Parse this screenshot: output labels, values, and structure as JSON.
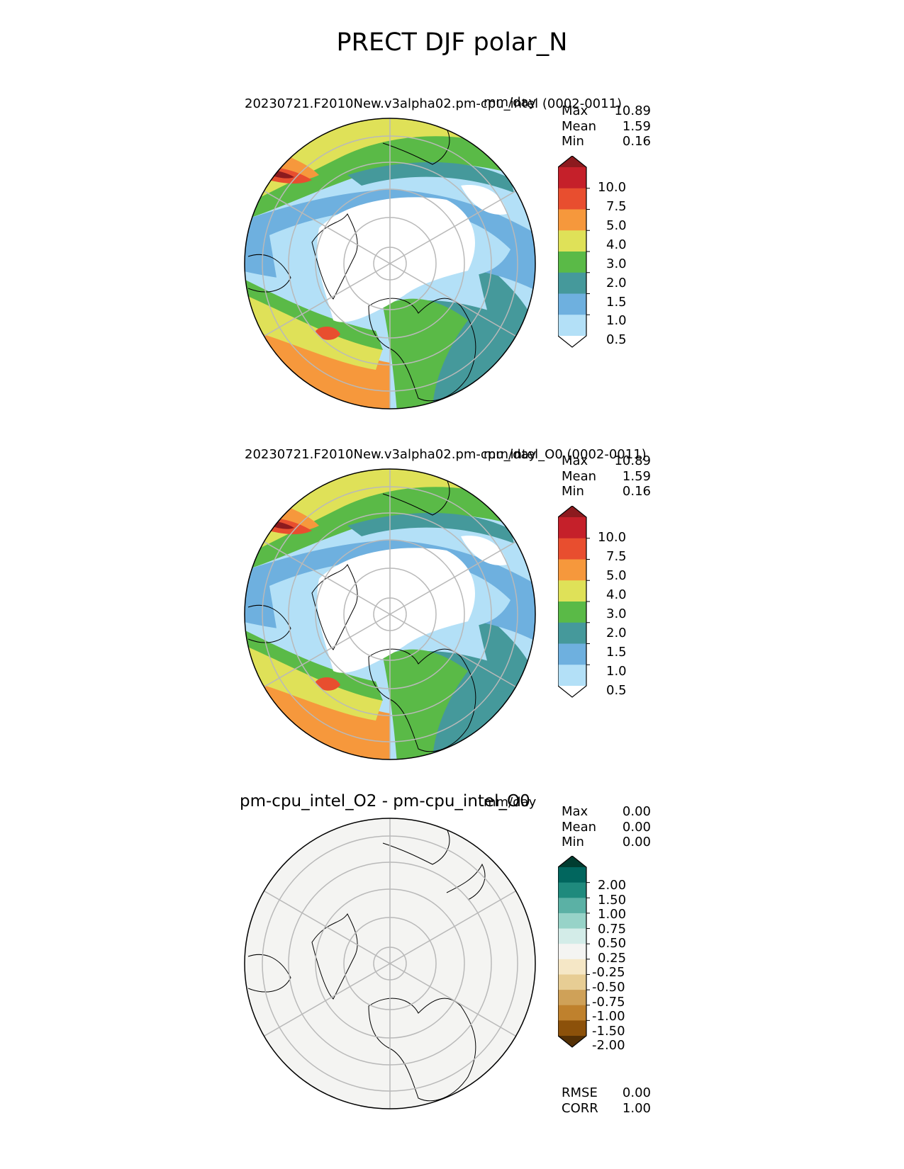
{
  "figure_title": "PRECT DJF polar_N",
  "panels": [
    {
      "title": "20230721.F2010New.v3alpha02.pm-cpu_intel (0002-0011)",
      "units": "mm/day",
      "stats": [
        {
          "label": "Max",
          "value": "10.89"
        },
        {
          "label": "Mean",
          "value": "1.59"
        },
        {
          "label": "Min",
          "value": "0.16"
        }
      ],
      "colorbar": {
        "labels": [
          "10.0",
          "7.5",
          "5.0",
          "4.0",
          "3.0",
          "2.0",
          "1.5",
          "1.0",
          "0.5"
        ],
        "colors": [
          "#ffffff",
          "#b3e0f7",
          "#6eb0df",
          "#45999b",
          "#5aba47",
          "#dfe158",
          "#f6983c",
          "#e84e2f",
          "#c5202a",
          "#8c1a1e"
        ]
      }
    },
    {
      "title": "20230721.F2010New.v3alpha02.pm-cpu_intel_O0 (0002-0011)",
      "units": "mm/day",
      "stats": [
        {
          "label": "Max",
          "value": "10.89"
        },
        {
          "label": "Mean",
          "value": "1.59"
        },
        {
          "label": "Min",
          "value": "0.16"
        }
      ],
      "colorbar": {
        "labels": [
          "10.0",
          "7.5",
          "5.0",
          "4.0",
          "3.0",
          "2.0",
          "1.5",
          "1.0",
          "0.5"
        ],
        "colors": [
          "#ffffff",
          "#b3e0f7",
          "#6eb0df",
          "#45999b",
          "#5aba47",
          "#dfe158",
          "#f6983c",
          "#e84e2f",
          "#c5202a",
          "#8c1a1e"
        ]
      }
    },
    {
      "title": "pm-cpu_intel_O2 - pm-cpu_intel_O0",
      "units": "mm/day",
      "stats": [
        {
          "label": "Max",
          "value": "0.00"
        },
        {
          "label": "Mean",
          "value": "0.00"
        },
        {
          "label": "Min",
          "value": "0.00"
        }
      ],
      "colorbar": {
        "labels": [
          "2.00",
          "1.50",
          "1.00",
          "0.75",
          "0.50",
          "0.25",
          "-0.25",
          "-0.50",
          "-0.75",
          "-1.00",
          "-1.50",
          "-2.00"
        ],
        "colors": [
          "#543005",
          "#8c510a",
          "#bf812d",
          "#cfa158",
          "#e7cd94",
          "#f5e7c6",
          "#f4f4f2",
          "#d3ece8",
          "#97d3c8",
          "#5bb1a5",
          "#1f8a7d",
          "#01665e",
          "#003c30"
        ]
      },
      "metrics": [
        {
          "label": "RMSE",
          "value": "0.00"
        },
        {
          "label": "CORR",
          "value": "1.00"
        }
      ]
    }
  ]
}
